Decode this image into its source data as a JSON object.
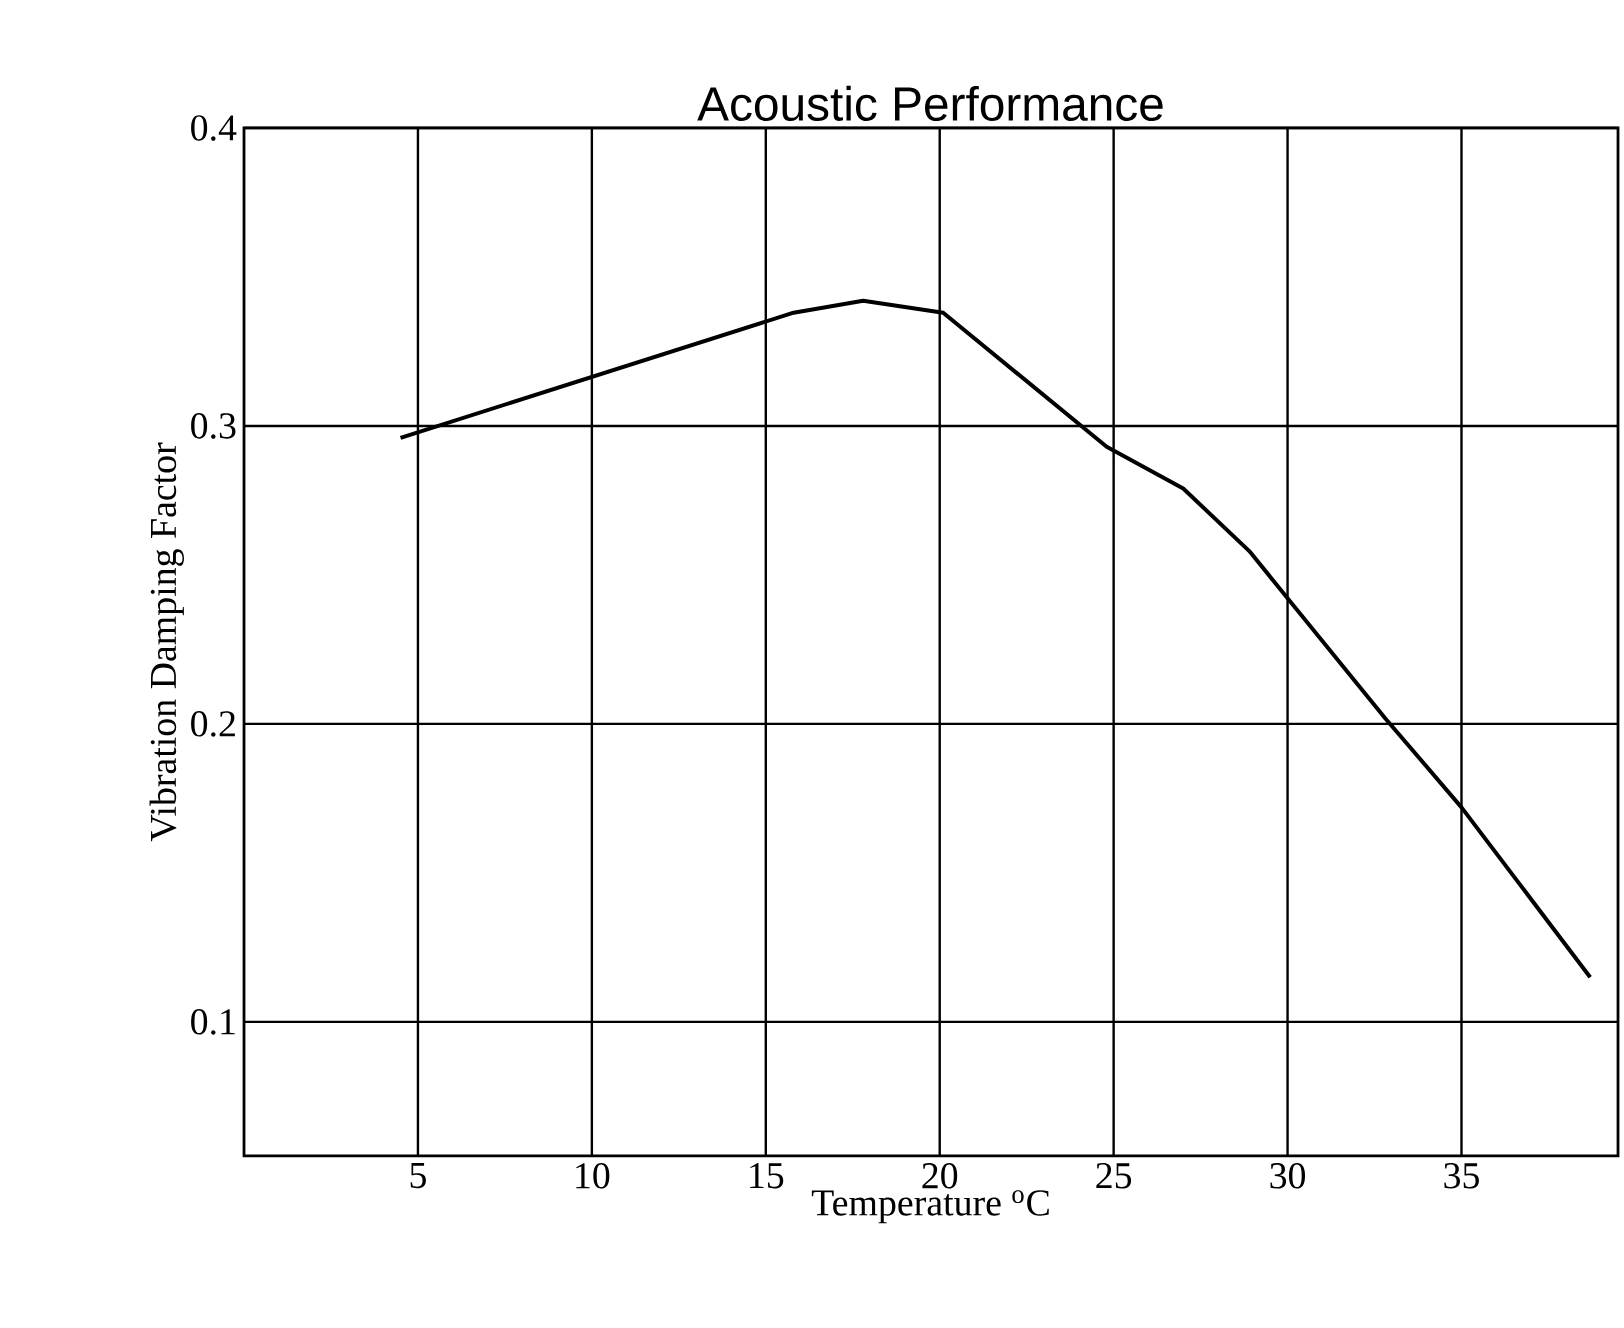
{
  "chart_data": {
    "type": "line",
    "title": "Acoustic Performance",
    "xlabel": "Temperature $^{o}$C",
    "ylabel": "Vibration Damping Factor",
    "x": [
      4.5,
      15.8,
      17.8,
      20.1,
      24.8,
      27.0,
      28.9,
      32.8,
      35.0,
      38.7
    ],
    "series": [
      {
        "color": "#000000",
        "values": [
          0.296,
          0.338,
          0.342,
          0.338,
          0.293,
          0.279,
          0.258,
          0.202,
          0.172,
          0.115
        ]
      }
    ],
    "xlim": [
      0,
      39.5
    ],
    "ylim": [
      0.055,
      0.4
    ],
    "xticks": [
      5,
      10,
      15,
      20,
      25,
      30,
      35
    ],
    "yticks": [
      0.1,
      0.2,
      0.3,
      0.4
    ],
    "grid": true,
    "marker": "none",
    "line_style": "solid"
  }
}
